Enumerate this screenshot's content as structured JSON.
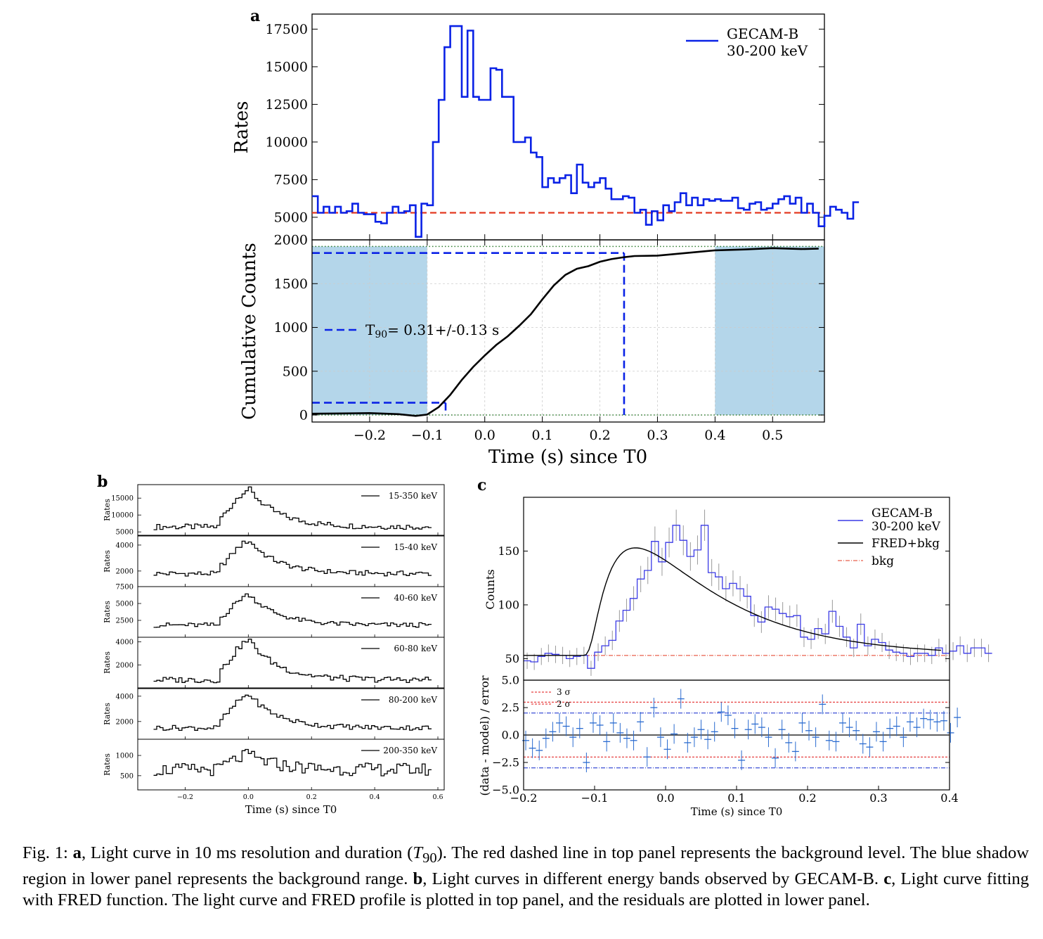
{
  "figure": {
    "panel_labels": {
      "a": "a",
      "b": "b",
      "c": "c"
    },
    "caption": {
      "prefix": "Fig. 1: ",
      "a_label": "a",
      "a_text": ", Light curve in 10 ms resolution and duration (",
      "t90_symbol": "T",
      "t90_sub": "90",
      "a_text2": "). The red dashed line in top panel represents the background level. The blue shadow region in lower panel represents the background range. ",
      "b_label": "b",
      "b_text": ", Light curves in different energy bands observed by GECAM-B. ",
      "c_label": "c",
      "c_text": ", Light curve fitting with FRED function. The light curve and FRED profile is plotted in top panel, and the residuals are plotted in lower panel."
    }
  },
  "colors": {
    "series": "#0a22e6",
    "bkg": "#e33a22",
    "shade": "#b4d6ea",
    "curve": "#000000",
    "resid_red": "#e01010",
    "resid_blue": "#0a22cc",
    "errbar": "#999999"
  },
  "chart_data": [
    {
      "id": "a_top",
      "type": "line",
      "step": true,
      "ylabel": "Rates",
      "legend": {
        "entry_line1": "GECAM-B",
        "entry_line2": "30-200 keV",
        "placement": "top-right"
      },
      "xlim": [
        -0.3,
        0.59
      ],
      "ylim": [
        3500,
        18500
      ],
      "yticks": [
        5000,
        7500,
        10000,
        12500,
        15000,
        17500
      ],
      "ytick_labels": [
        "5000",
        "7500",
        "10000",
        "12500",
        "15000",
        "17500"
      ],
      "background_level": 5300,
      "x_start": -0.3,
      "bin_width": 0.01,
      "values": [
        6400,
        5300,
        5700,
        5300,
        5700,
        5300,
        5400,
        5900,
        5300,
        5200,
        5200,
        4700,
        4600,
        5300,
        5700,
        5300,
        5400,
        5800,
        3700,
        5900,
        5800,
        10000,
        12800,
        16300,
        17700,
        17700,
        13000,
        17400,
        13000,
        12800,
        12800,
        14900,
        14800,
        13000,
        13000,
        10000,
        10000,
        10300,
        9300,
        9000,
        7000,
        7600,
        7300,
        7600,
        7800,
        6600,
        8500,
        7300,
        7000,
        7300,
        7600,
        6900,
        6200,
        6200,
        6400,
        6300,
        5300,
        5500,
        4500,
        5400,
        4800,
        5800,
        5400,
        6000,
        6600,
        5800,
        6300,
        5800,
        6200,
        6100,
        6200,
        6100,
        6100,
        6300,
        5600,
        5500,
        5900,
        6000,
        5500,
        5600,
        5900,
        6200,
        6400,
        5900,
        6300,
        5300,
        5900,
        5300,
        4400,
        5100,
        5700,
        5500,
        5300,
        4900,
        6000
      ]
    },
    {
      "id": "a_bottom",
      "type": "line",
      "ylabel": "Cumulative Counts",
      "xlabel": "Time (s) since T0",
      "xlim": [
        -0.3,
        0.59
      ],
      "ylim": [
        -80,
        2000
      ],
      "yticks": [
        0,
        500,
        1000,
        1500,
        2000
      ],
      "ytick_labels": [
        "0",
        "500",
        "1000",
        "1500",
        "2000"
      ],
      "xticks": [
        -0.2,
        -0.1,
        0.0,
        0.1,
        0.2,
        0.3,
        0.4,
        0.5
      ],
      "xtick_labels": [
        "−0.2",
        "−0.1",
        "0.0",
        "0.1",
        "0.2",
        "0.3",
        "0.4",
        "0.5"
      ],
      "grid": true,
      "legend": {
        "label_prefix": "T",
        "label_sub": "90",
        "label_suffix": "= 0.31+/-0.13 s",
        "placement": "center-left"
      },
      "shaded_ranges": [
        [
          -0.3,
          -0.1
        ],
        [
          0.4,
          0.59
        ]
      ],
      "dotted_levels": [
        0,
        1925
      ],
      "t90_levels": [
        140,
        1850
      ],
      "t90_start": -0.068,
      "t90_end": 0.242,
      "x": [
        -0.3,
        -0.25,
        -0.2,
        -0.15,
        -0.12,
        -0.1,
        -0.08,
        -0.06,
        -0.04,
        -0.02,
        0.0,
        0.02,
        0.04,
        0.06,
        0.08,
        0.1,
        0.12,
        0.14,
        0.16,
        0.18,
        0.2,
        0.22,
        0.24,
        0.26,
        0.3,
        0.35,
        0.4,
        0.45,
        0.5,
        0.55,
        0.58
      ],
      "y": [
        15,
        18,
        22,
        10,
        -10,
        5,
        90,
        230,
        400,
        550,
        680,
        800,
        900,
        1020,
        1150,
        1320,
        1480,
        1600,
        1670,
        1700,
        1750,
        1780,
        1800,
        1815,
        1820,
        1850,
        1880,
        1890,
        1905,
        1895,
        1900
      ]
    },
    {
      "id": "b",
      "type": "line",
      "step": true,
      "ylabel": "Rates",
      "xlabel": "Time (s) since T0",
      "xlim": [
        -0.35,
        0.62
      ],
      "xticks": [
        -0.2,
        0.0,
        0.2,
        0.4,
        0.6
      ],
      "xtick_labels": [
        "−0.2",
        "0.0",
        "0.2",
        "0.4",
        "0.6"
      ],
      "x_start": -0.3,
      "bin_width": 0.01,
      "series": [
        {
          "name": "15-350 keV",
          "ylim": [
            4000,
            19000
          ],
          "yticks": [
            5000,
            10000,
            15000
          ],
          "ytick_labels": [
            "5000",
            "10000",
            "15000"
          ],
          "peak": 17500,
          "base": 6500
        },
        {
          "name": "15-40 keV",
          "ylim": [
            800,
            4700
          ],
          "yticks": [
            2000,
            4000
          ],
          "ytick_labels": [
            "2000",
            "4000"
          ],
          "peak": 4300,
          "base": 1800
        },
        {
          "name": "40-60 keV",
          "ylim": [
            0,
            7500
          ],
          "yticks": [
            2500,
            5000,
            7500
          ],
          "ytick_labels": [
            "2500",
            "5000",
            "7500"
          ],
          "peak": 6300,
          "base": 1800
        },
        {
          "name": "60-80 keV",
          "ylim": [
            0,
            4400
          ],
          "yticks": [
            2000,
            4000
          ],
          "ytick_labels": [
            "2000",
            "4000"
          ],
          "peak": 4100,
          "base": 700
        },
        {
          "name": "80-200 keV",
          "ylim": [
            600,
            4600
          ],
          "yticks": [
            2000,
            4000
          ],
          "ytick_labels": [
            "2000",
            "4000"
          ],
          "peak": 4100,
          "base": 1500
        },
        {
          "name": "200-350 keV",
          "ylim": [
            150,
            1400
          ],
          "yticks": [
            500,
            1000
          ],
          "ytick_labels": [
            "500",
            "1000"
          ],
          "peak": 1000,
          "base": 650
        }
      ]
    },
    {
      "id": "c_top",
      "type": "line",
      "step": true,
      "ylabel": "Counts",
      "xlim": [
        -0.2,
        0.4
      ],
      "ylim": [
        30,
        200
      ],
      "yticks": [
        50,
        100,
        150
      ],
      "ytick_labels": [
        "50",
        "100",
        "150"
      ],
      "legend": {
        "series_line1": "GECAM-B",
        "series_line2": "30-200 keV",
        "model": "FRED+bkg",
        "bkg": "bkg",
        "placement": "top-right"
      },
      "bkg_level": 53,
      "x_start": -0.2,
      "bin_width": 0.01,
      "values": [
        48,
        47,
        52,
        55,
        54,
        53,
        50,
        52,
        53,
        41,
        56,
        62,
        67,
        85,
        95,
        106,
        124,
        132,
        159,
        140,
        158,
        174,
        160,
        145,
        151,
        174,
        130,
        126,
        115,
        120,
        115,
        108,
        90,
        84,
        98,
        96,
        92,
        89,
        90,
        70,
        68,
        78,
        73,
        94,
        80,
        70,
        60,
        82,
        62,
        68,
        65,
        58,
        56,
        55,
        52,
        55,
        55,
        53,
        60,
        55,
        57,
        62,
        55,
        60,
        60,
        55
      ]
    },
    {
      "id": "c_bottom",
      "type": "scatter",
      "ylabel": "(data - model) / error",
      "xlabel": "Time (s) since T0",
      "xlim": [
        -0.2,
        0.4
      ],
      "ylim": [
        -5.0,
        5.0
      ],
      "yticks": [
        -5.0,
        -2.5,
        0.0,
        2.5,
        5.0
      ],
      "ytick_labels": [
        "−5.0",
        "−2.5",
        "0.0",
        "2.5",
        "5.0"
      ],
      "xticks": [
        -0.2,
        -0.1,
        0.0,
        0.1,
        0.2,
        0.3,
        0.4
      ],
      "xtick_labels": [
        "−0.2",
        "−0.1",
        "0.0",
        "0.1",
        "0.2",
        "0.3",
        "0.4"
      ],
      "legend": {
        "three_sigma": "3 σ",
        "two_sigma": "2 σ"
      },
      "sigma_lines": {
        "red": [
          3.0,
          -2.0
        ],
        "blue": [
          2.0,
          -3.0
        ]
      },
      "x_start": -0.197,
      "bin_width": 0.0095,
      "values": [
        -0.5,
        -1.2,
        -1.4,
        -0.3,
        0.3,
        1.1,
        0.8,
        -0.2,
        0.6,
        -2.5,
        1.1,
        0.9,
        -0.6,
        1.1,
        0.2,
        -0.3,
        -0.5,
        1.2,
        -2.0,
        2.5,
        -0.2,
        -1.3,
        0.1,
        3.3,
        -0.7,
        -0.2,
        0.5,
        -0.4,
        0.3,
        2.1,
        1.8,
        0.6,
        -2.3,
        0.5,
        1.0,
        0.7,
        -0.2,
        -2.1,
        0.5,
        -0.7,
        -1.5,
        1.1,
        0.4,
        -0.2,
        2.8,
        -0.5,
        -0.6,
        1.1,
        0.7,
        0.4,
        -0.8,
        -1.1,
        0.3,
        -0.6,
        0.6,
        0.8,
        -0.2,
        1.2,
        0.7,
        1.5,
        1.4,
        1.2,
        1.3,
        0.2,
        1.6
      ]
    }
  ]
}
